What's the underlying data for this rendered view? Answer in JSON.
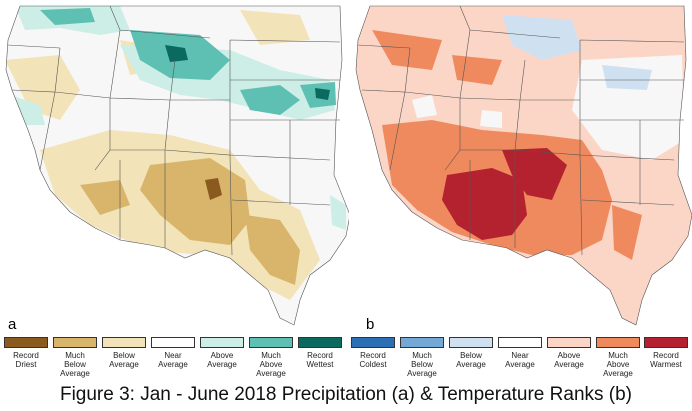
{
  "panels": [
    {
      "letter": "a",
      "colors": {
        "record_driest": "#8a5a1f",
        "much_below": "#d8b56a",
        "below": "#f3e3b8",
        "near": "#f7f7f7",
        "above": "#cdeee6",
        "much_above": "#5ebfb3",
        "record_wettest": "#0b6a5f"
      },
      "legend": [
        {
          "label": "Record\nDriest",
          "color": "#8a5a1f"
        },
        {
          "label": "Much\nBelow\nAverage",
          "color": "#d8b56a"
        },
        {
          "label": "Below\nAverage",
          "color": "#f3e3b8"
        },
        {
          "label": "Near\nAverage",
          "color": "#ffffff"
        },
        {
          "label": "Above\nAverage",
          "color": "#cdeee6"
        },
        {
          "label": "Much\nAbove\nAverage",
          "color": "#5ebfb3"
        },
        {
          "label": "Record\nWettest",
          "color": "#0b6a5f"
        }
      ]
    },
    {
      "letter": "b",
      "colors": {
        "record_coldest": "#2c6fb5",
        "much_below": "#74a8d6",
        "below": "#cfe1f0",
        "near": "#f7f7f7",
        "above": "#fbd6c6",
        "much_above": "#ef8a5f",
        "record_warmest": "#b5222f"
      },
      "legend": [
        {
          "label": "Record\nColdest",
          "color": "#2c6fb5"
        },
        {
          "label": "Much\nBelow\nAverage",
          "color": "#74a8d6"
        },
        {
          "label": "Below\nAverage",
          "color": "#cfe1f0"
        },
        {
          "label": "Near\nAverage",
          "color": "#ffffff"
        },
        {
          "label": "Above\nAverage",
          "color": "#fbd6c6"
        },
        {
          "label": "Much\nAbove\nAverage",
          "color": "#ef8a5f"
        },
        {
          "label": "Record\nWarmest",
          "color": "#b5222f"
        }
      ]
    }
  ],
  "caption": "Figure 3: Jan - June 2018 Precipitation (a) & Temperature Ranks (b)"
}
